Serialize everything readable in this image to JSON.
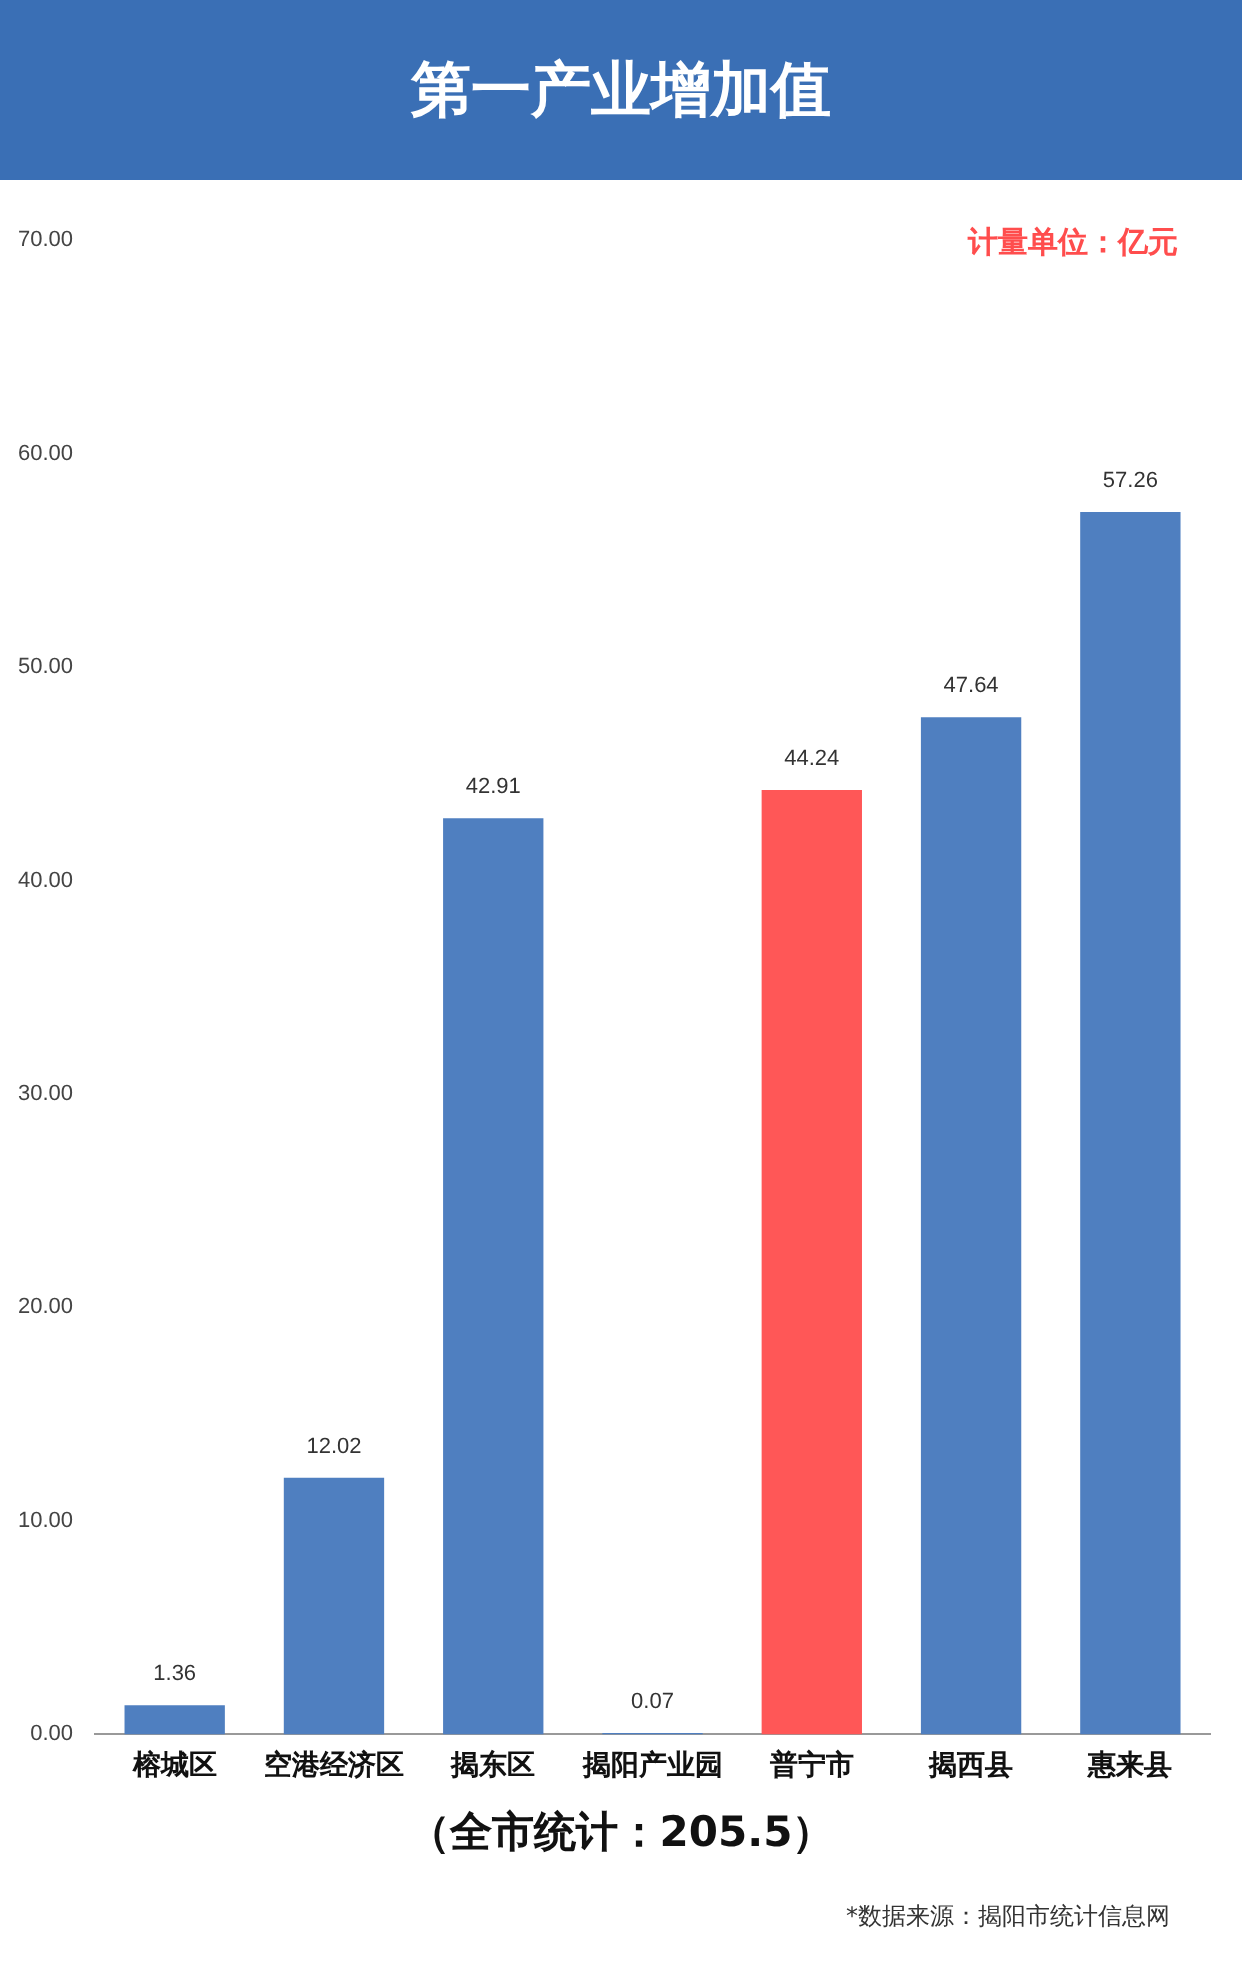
{
  "chart_data": {
    "type": "bar",
    "title": "第一产业增加值",
    "categories": [
      "榕城区",
      "空港经济区",
      "揭东区",
      "揭阳产业园",
      "普宁市",
      "揭西县",
      "惠来县"
    ],
    "values": [
      1.36,
      12.02,
      42.91,
      0.07,
      44.24,
      47.64,
      57.26
    ],
    "colors": [
      "#4f7fc0",
      "#4f7fc0",
      "#4f7fc0",
      "#4f7fc0",
      "#ff5757",
      "#4f7fc0",
      "#4f7fc0"
    ],
    "ylim": [
      0,
      70
    ],
    "yticks": [
      {
        "value": 0,
        "label": "0.00"
      },
      {
        "value": 10,
        "label": "10.00"
      },
      {
        "value": 20,
        "label": "20.00"
      },
      {
        "value": 30,
        "label": "30.00"
      },
      {
        "value": 40,
        "label": "40.00"
      },
      {
        "value": 50,
        "label": "50.00"
      },
      {
        "value": 60,
        "label": "60.00"
      },
      {
        "value": 70,
        "label": "70.00"
      }
    ],
    "data_labels": true,
    "grid": false,
    "legend": false,
    "annotations": [
      "计量单位：亿元",
      "（全市统计：205.5）",
      "*数据来源：揭阳市统计信息网"
    ]
  }
}
